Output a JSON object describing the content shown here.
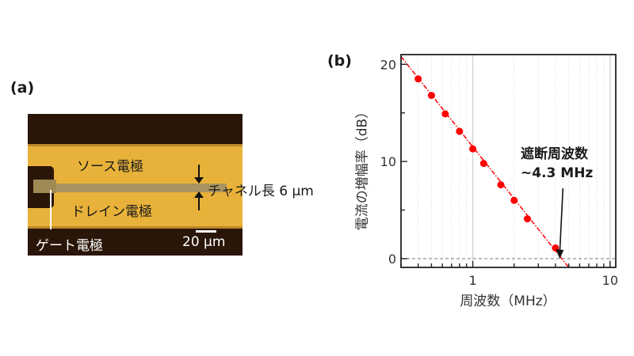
{
  "panel_a": {
    "label": "(a)",
    "source_label": "ソース電極",
    "drain_label": "ドレイン電極",
    "gate_label": "ゲート電極",
    "channel_label": "チャネル長 6 μm",
    "scale_label": "20 μm",
    "colors": {
      "gold": "#e8b23a",
      "background": "#2a1608",
      "channel": "#a99461"
    }
  },
  "panel_b": {
    "label": "(b)",
    "annotation_line1": "遮断周波数",
    "annotation_line2": "~4.3 MHz"
  },
  "chart_data": {
    "type": "scatter",
    "title": "",
    "xlabel": "周波数（MHz）",
    "ylabel": "電流の増幅率（dB）",
    "xscale": "log",
    "xlim": [
      0.3,
      11
    ],
    "ylim": [
      -0.9,
      21
    ],
    "xticks": [
      1,
      10
    ],
    "xtick_labels": [
      "1",
      "10"
    ],
    "yticks": [
      0,
      10,
      20
    ],
    "ytick_labels": [
      "0",
      "10",
      "20"
    ],
    "grid": {
      "x_major": true,
      "x_minor": "dotted",
      "y": false
    },
    "series": [
      {
        "name": "measured",
        "marker": "circle",
        "color": "#ff0000",
        "x": [
          0.4,
          0.5,
          0.63,
          0.8,
          1.0,
          1.2,
          1.6,
          2.0,
          2.5,
          4.0
        ],
        "y": [
          18.5,
          16.8,
          14.9,
          13.1,
          11.3,
          9.8,
          7.6,
          6.0,
          4.1,
          1.1
        ]
      },
      {
        "name": "fit",
        "style": "dash-dot",
        "color": "#ff0000",
        "x": [
          0.3,
          5.0
        ],
        "y": [
          20.8,
          -0.9
        ]
      }
    ],
    "reference_lines": [
      {
        "axis": "y",
        "value": 0,
        "style": "dashed",
        "color": "#888888"
      }
    ],
    "annotations": [
      {
        "text": "遮断周波数 ~4.3 MHz",
        "arrow_to": {
          "x": 4.3,
          "y": 0
        }
      }
    ]
  }
}
